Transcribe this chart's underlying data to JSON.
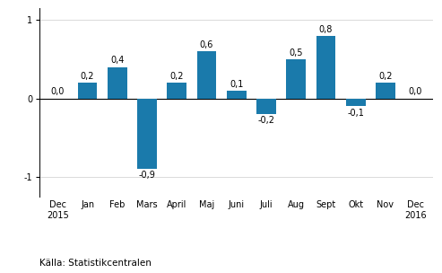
{
  "categories": [
    "Dec\n2015",
    "Jan",
    "Feb",
    "Mars",
    "April",
    "Maj",
    "Juni",
    "Juli",
    "Aug",
    "Sept",
    "Okt",
    "Nov",
    "Dec\n2016"
  ],
  "values": [
    0.0,
    0.2,
    0.4,
    -0.9,
    0.2,
    0.6,
    0.1,
    -0.2,
    0.5,
    0.8,
    -0.1,
    0.2,
    0.0
  ],
  "bar_color": "#1a7aab",
  "ylim": [
    -1.25,
    1.15
  ],
  "yticks": [
    -1,
    0,
    1
  ],
  "background_color": "#ffffff",
  "source_text": "Källa: Statistikcentralen",
  "label_fontsize": 7,
  "tick_fontsize": 7,
  "source_fontsize": 7.5
}
